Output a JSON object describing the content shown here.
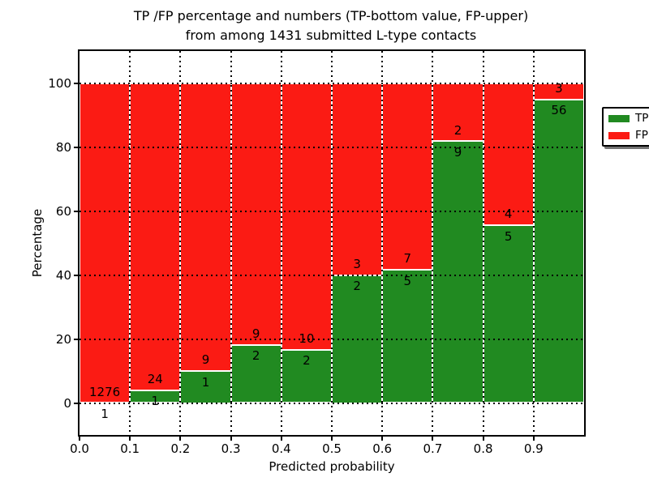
{
  "figure": {
    "title": "TP /FP percentage and numbers (TP-bottom value, FP-upper)",
    "subtitle": "from among 1431 submitted L-type contacts"
  },
  "colors": {
    "tp_green": "#218a21",
    "fp_red": "#fb1b14",
    "background": "#ffffff",
    "text": "#000000",
    "grid": "#000000"
  },
  "chart_data": {
    "type": "bar",
    "stacked": true,
    "normalized": "each bin scaled to 100%",
    "title": "TP /FP percentage and numbers (TP-bottom value, FP-upper)",
    "subtitle": "from among 1431 submitted L-type contacts",
    "xlabel": "Predicted probability",
    "ylabel": "Percentage",
    "xlim": [
      0.0,
      1.0
    ],
    "ylim": [
      -10,
      110
    ],
    "x_ticks": [
      "0.0",
      "0.1",
      "0.2",
      "0.3",
      "0.4",
      "0.5",
      "0.6",
      "0.7",
      "0.8",
      "0.9"
    ],
    "y_ticks": [
      0,
      20,
      40,
      60,
      80,
      100
    ],
    "grid": "dotted",
    "total_submitted": 1431,
    "legend": {
      "position": "upper right",
      "entries": [
        {
          "label": "TP",
          "color": "#218a21"
        },
        {
          "label": "FP",
          "color": "#fb1b14"
        }
      ]
    },
    "bins": [
      {
        "x0": 0.0,
        "x1": 0.1,
        "tp": 1,
        "fp": 1276
      },
      {
        "x0": 0.1,
        "x1": 0.2,
        "tp": 1,
        "fp": 24
      },
      {
        "x0": 0.2,
        "x1": 0.3,
        "tp": 1,
        "fp": 9
      },
      {
        "x0": 0.3,
        "x1": 0.4,
        "tp": 2,
        "fp": 9
      },
      {
        "x0": 0.4,
        "x1": 0.5,
        "tp": 2,
        "fp": 10
      },
      {
        "x0": 0.5,
        "x1": 0.6,
        "tp": 2,
        "fp": 3
      },
      {
        "x0": 0.6,
        "x1": 0.7,
        "tp": 5,
        "fp": 7
      },
      {
        "x0": 0.7,
        "x1": 0.8,
        "tp": 9,
        "fp": 2
      },
      {
        "x0": 0.8,
        "x1": 0.9,
        "tp": 5,
        "fp": 4
      },
      {
        "x0": 0.9,
        "x1": 1.0,
        "tp": 56,
        "fp": 3
      }
    ]
  }
}
